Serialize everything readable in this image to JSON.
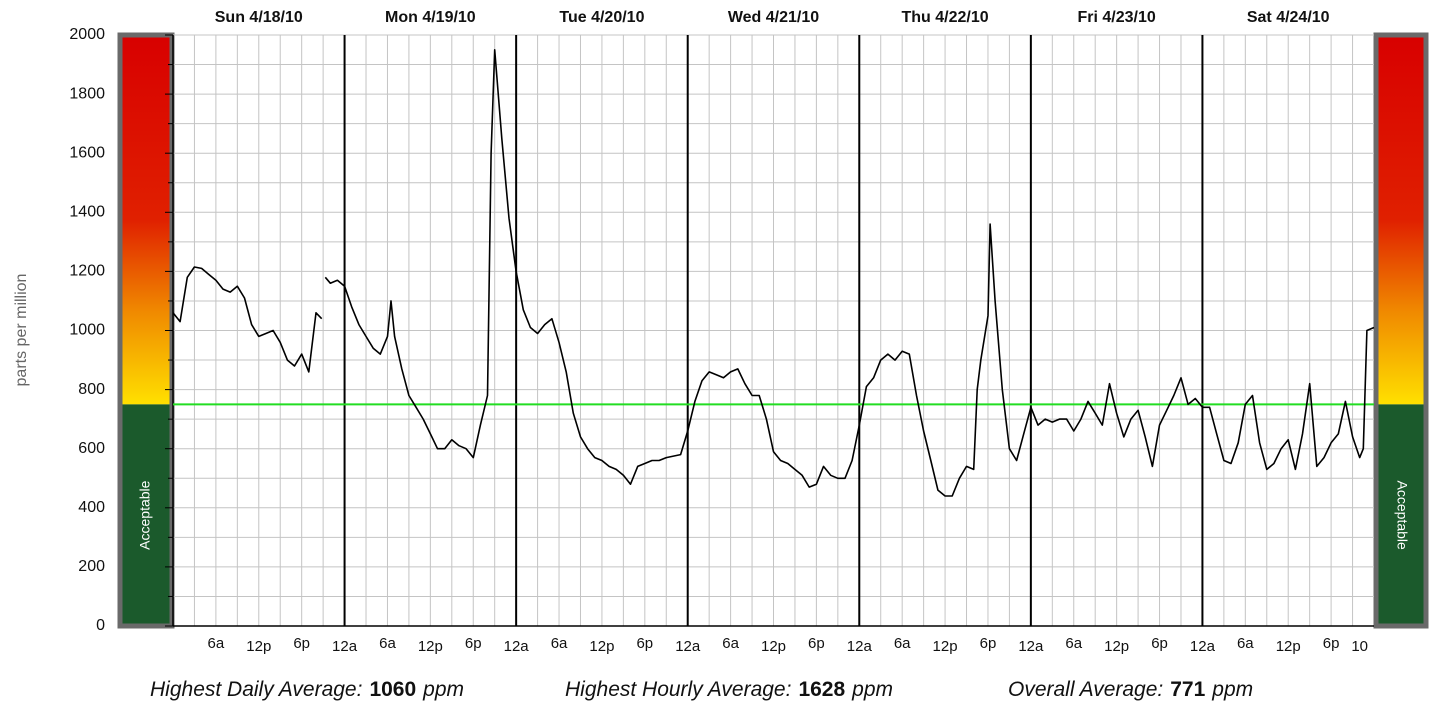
{
  "chart_data": {
    "type": "line",
    "y_label": "parts per million",
    "days": [
      "Sun 4/18/10",
      "Mon 4/19/10",
      "Tue 4/20/10",
      "Wed 4/21/10",
      "Thu 4/22/10",
      "Fri 4/23/10",
      "Sat 4/24/10"
    ],
    "xlim": [
      0,
      168
    ],
    "ylim": [
      0,
      2000
    ],
    "yticks": [
      0,
      200,
      400,
      600,
      800,
      1000,
      1200,
      1400,
      1600,
      1800,
      2000
    ],
    "yminorticks": [
      100,
      300,
      500,
      700,
      900,
      1100,
      1300,
      1500,
      1700,
      1900
    ],
    "xgrid": [
      3,
      6,
      9,
      12,
      15,
      18,
      21,
      27,
      30,
      33,
      36,
      39,
      42,
      45,
      51,
      54,
      57,
      60,
      63,
      66,
      69,
      75,
      78,
      81,
      84,
      87,
      90,
      93,
      99,
      102,
      105,
      108,
      111,
      114,
      117,
      123,
      126,
      129,
      132,
      135,
      138,
      141,
      147,
      150,
      153,
      156,
      159,
      162,
      165
    ],
    "day_lines": [
      24,
      48,
      72,
      96,
      120,
      144
    ],
    "xticks": [
      {
        "value": 6,
        "label": "6a"
      },
      {
        "value": 12,
        "label": "12p"
      },
      {
        "value": 18,
        "label": "6p"
      },
      {
        "value": 24,
        "label": "12a"
      },
      {
        "value": 30,
        "label": "6a"
      },
      {
        "value": 36,
        "label": "12p"
      },
      {
        "value": 42,
        "label": "6p"
      },
      {
        "value": 48,
        "label": "12a"
      },
      {
        "value": 54,
        "label": "6a"
      },
      {
        "value": 60,
        "label": "12p"
      },
      {
        "value": 66,
        "label": "6p"
      },
      {
        "value": 72,
        "label": "12a"
      },
      {
        "value": 78,
        "label": "6a"
      },
      {
        "value": 84,
        "label": "12p"
      },
      {
        "value": 90,
        "label": "6p"
      },
      {
        "value": 96,
        "label": "12a"
      },
      {
        "value": 102,
        "label": "6a"
      },
      {
        "value": 108,
        "label": "12p"
      },
      {
        "value": 114,
        "label": "6p"
      },
      {
        "value": 120,
        "label": "12a"
      },
      {
        "value": 126,
        "label": "6a"
      },
      {
        "value": 132,
        "label": "12p"
      },
      {
        "value": 138,
        "label": "6p"
      },
      {
        "value": 144,
        "label": "12a"
      },
      {
        "value": 150,
        "label": "6a"
      },
      {
        "value": 156,
        "label": "12p"
      },
      {
        "value": 162,
        "label": "6p"
      },
      {
        "value": 166,
        "label": "10"
      }
    ],
    "grid": true,
    "threshold": 750,
    "threshold_color": "#22dd22",
    "zone_label": "Acceptable",
    "series": [
      {
        "color": "#000000",
        "x": [
          0,
          1,
          2,
          3,
          4,
          5,
          6,
          7,
          8,
          9,
          10,
          11,
          12,
          13,
          14,
          15,
          16,
          17,
          18,
          19,
          20,
          20.8,
          21,
          21.3,
          22,
          23,
          24,
          25,
          26,
          27,
          28,
          29,
          30,
          30.5,
          31,
          32,
          33,
          34,
          35,
          36,
          37,
          38,
          39,
          40,
          41,
          42,
          43,
          44,
          44.5,
          45,
          46,
          47,
          48,
          49,
          50,
          51,
          52,
          53,
          54,
          55,
          56,
          57,
          58,
          59,
          60,
          61,
          62,
          63,
          64,
          65,
          66,
          67,
          68,
          69,
          70,
          71,
          72,
          73,
          74,
          75,
          76,
          77,
          78,
          79,
          80,
          81,
          82,
          83,
          84,
          85,
          86,
          87,
          88,
          89,
          90,
          91,
          92,
          93,
          94,
          95,
          96,
          97,
          98,
          99,
          100,
          101,
          102,
          103,
          104,
          105,
          106,
          107,
          108,
          109,
          110,
          111,
          112,
          112.5,
          113,
          114,
          114.3,
          115,
          116,
          117,
          118,
          119,
          120,
          121,
          122,
          123,
          124,
          125,
          126,
          127,
          128,
          129,
          130,
          131,
          132,
          133,
          134,
          135,
          136,
          137,
          138,
          139,
          140,
          141,
          142,
          143,
          144,
          145,
          146,
          147,
          148,
          149,
          150,
          151,
          152,
          153,
          154,
          155,
          156,
          157,
          158,
          159,
          160,
          161,
          162,
          163,
          164,
          165,
          166,
          166.5,
          167,
          168
        ],
        "values": [
          1060,
          1030,
          1180,
          1215,
          1210,
          1190,
          1170,
          1140,
          1130,
          1150,
          1110,
          1020,
          980,
          990,
          1000,
          960,
          900,
          880,
          920,
          860,
          1060,
          1040,
          null,
          1180,
          1160,
          1170,
          1150,
          1080,
          1020,
          980,
          940,
          920,
          980,
          1100,
          980,
          870,
          780,
          740,
          700,
          650,
          600,
          600,
          630,
          610,
          600,
          570,
          680,
          780,
          1600,
          1950,
          1650,
          1380,
          1200,
          1070,
          1010,
          990,
          1020,
          1040,
          960,
          860,
          720,
          640,
          600,
          570,
          560,
          540,
          530,
          510,
          480,
          540,
          550,
          560,
          560,
          570,
          575,
          580,
          660,
          760,
          830,
          860,
          850,
          840,
          860,
          870,
          820,
          780,
          780,
          700,
          590,
          560,
          550,
          530,
          510,
          470,
          480,
          540,
          510,
          500,
          500,
          560,
          680,
          810,
          840,
          900,
          920,
          900,
          930,
          920,
          780,
          660,
          560,
          460,
          440,
          440,
          500,
          540,
          530,
          800,
          900,
          1050,
          1360,
          1100,
          800,
          600,
          560,
          650,
          740,
          680,
          700,
          690,
          700,
          700,
          660,
          700,
          760,
          720,
          680,
          820,
          720,
          640,
          700,
          730,
          640,
          540,
          680,
          730,
          780,
          840,
          750,
          770,
          740,
          740,
          650,
          560,
          550,
          620,
          750,
          780,
          620,
          530,
          550,
          600,
          630,
          530,
          650,
          820,
          540,
          570,
          620,
          650,
          760,
          640,
          570,
          600,
          1000,
          1010
        ]
      }
    ],
    "stats": [
      {
        "label": "Highest Daily Average:",
        "value": 1060,
        "unit": "ppm"
      },
      {
        "label": "Highest Hourly Average:",
        "value": 1628,
        "unit": "ppm"
      },
      {
        "label": "Overall Average:",
        "value": 771,
        "unit": "ppm"
      }
    ]
  }
}
